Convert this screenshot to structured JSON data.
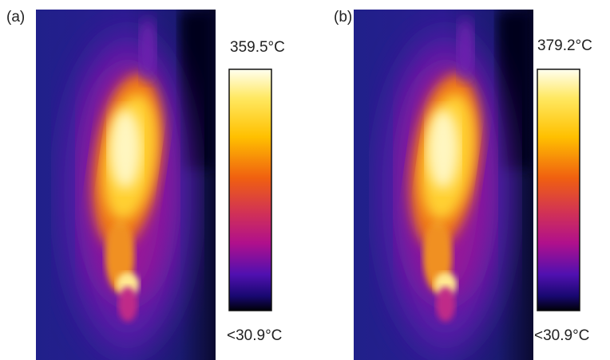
{
  "panels": [
    {
      "label": "(a)",
      "max": "359.5°C",
      "min": "<30.9°C"
    },
    {
      "label": "(b)",
      "max": "379.2°C",
      "min": "<30.9°C"
    }
  ]
}
